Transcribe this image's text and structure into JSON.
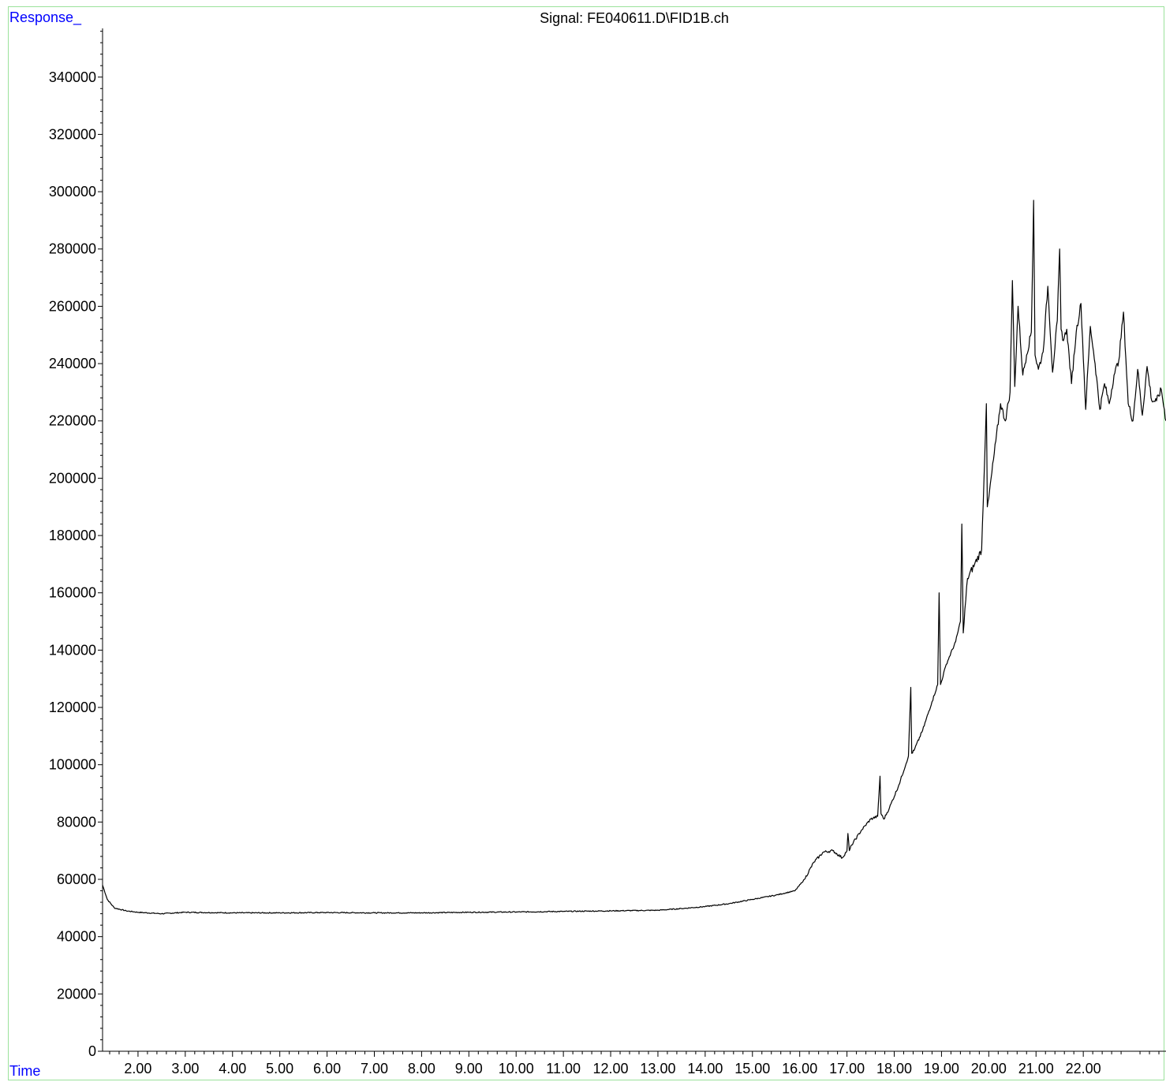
{
  "chart_data": {
    "type": "line",
    "title": "Signal: FE040611.D\\FID1B.ch",
    "ylabel": "Response_",
    "xlabel": "Time",
    "axis_label_color": "#0000ff",
    "frame_color": "#9be29b",
    "line_color": "#000000",
    "xlim": [
      1.25,
      23.75
    ],
    "ylim": [
      0,
      357000
    ],
    "x_ticks": [
      "2.00",
      "3.00",
      "4.00",
      "5.00",
      "6.00",
      "7.00",
      "8.00",
      "9.00",
      "10.00",
      "11.00",
      "12.00",
      "13.00",
      "14.00",
      "15.00",
      "16.00",
      "17.00",
      "18.00",
      "19.00",
      "20.00",
      "21.00",
      "22.00"
    ],
    "y_ticks": [
      "0",
      "20000",
      "40000",
      "60000",
      "80000",
      "100000",
      "120000",
      "140000",
      "160000",
      "180000",
      "200000",
      "220000",
      "240000",
      "260000",
      "280000",
      "300000",
      "320000",
      "340000"
    ],
    "grid": false,
    "series": [
      {
        "x": [
          1.25,
          1.35,
          1.5,
          1.75,
          2.0,
          2.5,
          3.0,
          4.0,
          5.0,
          6.0,
          7.0,
          8.0,
          9.0,
          10.0,
          11.0,
          12.0,
          13.0,
          13.5,
          14.0,
          14.5,
          15.0,
          15.5,
          15.9,
          16.1,
          16.3,
          16.5,
          16.7,
          16.9,
          17.0,
          17.02,
          17.05,
          17.1,
          17.3,
          17.5,
          17.65,
          17.7,
          17.72,
          17.78,
          17.9,
          18.1,
          18.3,
          18.35,
          18.37,
          18.42,
          18.6,
          18.8,
          18.92,
          18.95,
          18.98,
          19.1,
          19.3,
          19.4,
          19.43,
          19.46,
          19.55,
          19.7,
          19.85,
          19.95,
          19.97,
          20.0,
          20.15,
          20.25,
          20.35,
          20.45,
          20.5,
          20.55,
          20.62,
          20.72,
          20.8,
          20.9,
          20.95,
          20.98,
          21.05,
          21.15,
          21.25,
          21.35,
          21.45,
          21.5,
          21.53,
          21.58,
          21.65,
          21.75,
          21.85,
          21.95,
          22.05,
          22.15,
          22.25,
          22.35,
          22.45,
          22.55,
          22.65,
          22.75,
          22.85,
          22.95,
          23.05,
          23.15,
          23.25,
          23.35,
          23.45,
          23.55,
          23.65,
          23.75
        ],
        "y": [
          58000,
          53000,
          50000,
          49000,
          48500,
          48000,
          48500,
          48300,
          48300,
          48400,
          48300,
          48300,
          48500,
          48600,
          48800,
          49000,
          49200,
          49800,
          50500,
          51500,
          53000,
          54500,
          56000,
          60000,
          66000,
          69500,
          70000,
          67500,
          70000,
          76000,
          70000,
          72000,
          77000,
          81000,
          82000,
          96000,
          83000,
          81000,
          85000,
          93000,
          103000,
          127000,
          104000,
          105000,
          112000,
          122000,
          128000,
          160000,
          128000,
          135000,
          143000,
          150000,
          184000,
          146000,
          165000,
          170000,
          175000,
          226000,
          190000,
          193000,
          213000,
          226000,
          220000,
          230000,
          269000,
          232000,
          260000,
          236000,
          243000,
          251000,
          297000,
          243000,
          238000,
          244000,
          267000,
          237000,
          255000,
          280000,
          252000,
          248000,
          252000,
          233000,
          251000,
          261000,
          224000,
          253000,
          240000,
          224000,
          233000,
          226000,
          236000,
          241000,
          258000,
          226000,
          220000,
          238000,
          222000,
          239000,
          227000,
          227000,
          231000,
          220000
        ]
      }
    ]
  }
}
